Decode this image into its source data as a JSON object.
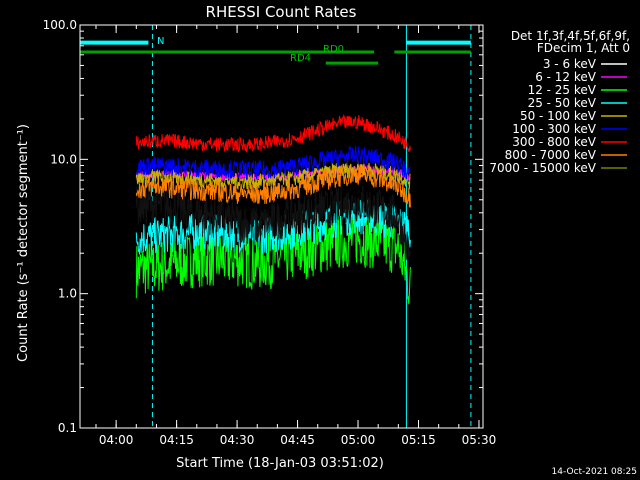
{
  "chart_data": {
    "type": "line",
    "title": "RHESSI Count Rates",
    "xlabel": "Start Time (18-Jan-03 03:51:02)",
    "ylabel": "Count Rate (s⁻¹ detector segment⁻¹)",
    "y_scale": "log",
    "ylim": [
      0.1,
      100.0
    ],
    "xlim": [
      "03:51:02",
      "05:31:00"
    ],
    "x_ticks": [
      "04:00",
      "04:15",
      "04:30",
      "04:45",
      "05:00",
      "05:15",
      "05:30"
    ],
    "y_ticks": [
      "0.1",
      "1.0",
      "10.0",
      "100.0"
    ],
    "grid": false,
    "legend_position": "right",
    "legend_header": [
      "Det 1f,3f,4f,5f,6f,9f,",
      "FDecim 1, Att 0"
    ],
    "series": [
      {
        "name": "3 - 6 keV",
        "color": "#000000",
        "x": [
          "04:05",
          "04:10",
          "04:15",
          "04:20",
          "04:25",
          "04:30",
          "04:35",
          "04:40",
          "04:45",
          "04:50",
          "04:55",
          "05:00",
          "05:05",
          "05:10",
          "05:13"
        ],
        "y": [
          4.5,
          4.6,
          4.3,
          4.0,
          3.8,
          3.4,
          3.2,
          3.5,
          3.9,
          4.2,
          4.4,
          4.8,
          4.3,
          3.8,
          1.8
        ]
      },
      {
        "name": "6 - 12 keV",
        "color": "#ff00ff",
        "x": [
          "04:05",
          "04:10",
          "04:15",
          "04:20",
          "04:25",
          "04:30",
          "04:35",
          "04:40",
          "04:45",
          "04:50",
          "04:55",
          "05:00",
          "05:05",
          "05:10",
          "05:13"
        ],
        "y": [
          7.5,
          7.8,
          7.8,
          7.6,
          7.5,
          7.4,
          7.3,
          7.4,
          7.6,
          8.0,
          8.3,
          8.6,
          8.4,
          8.0,
          7.4
        ]
      },
      {
        "name": "12 - 25 keV",
        "color": "#00ff00",
        "x": [
          "04:05",
          "04:10",
          "04:15",
          "04:20",
          "04:25",
          "04:30",
          "04:35",
          "04:40",
          "04:45",
          "04:50",
          "04:55",
          "05:00",
          "05:05",
          "05:10",
          "05:13"
        ],
        "y": [
          1.5,
          1.6,
          1.7,
          1.8,
          1.8,
          1.8,
          1.7,
          1.8,
          2.0,
          2.2,
          2.4,
          2.6,
          2.4,
          2.2,
          1.1
        ]
      },
      {
        "name": "25 - 50 keV",
        "color": "#00ffff",
        "x": [
          "04:05",
          "04:10",
          "04:15",
          "04:20",
          "04:25",
          "04:30",
          "04:35",
          "04:40",
          "04:45",
          "04:50",
          "04:55",
          "05:00",
          "05:05",
          "05:10",
          "05:13"
        ],
        "y": [
          2.6,
          2.7,
          2.8,
          2.9,
          2.8,
          2.8,
          2.7,
          2.8,
          3.0,
          3.3,
          3.6,
          3.8,
          3.6,
          3.4,
          3.0
        ]
      },
      {
        "name": "50 - 100 keV",
        "color": "#c8b400",
        "x": [
          "04:05",
          "04:10",
          "04:15",
          "04:20",
          "04:25",
          "04:30",
          "04:35",
          "04:40",
          "04:45",
          "04:50",
          "04:55",
          "05:00",
          "05:05",
          "05:10",
          "05:13"
        ],
        "y": [
          7.2,
          7.4,
          7.3,
          7.1,
          7.0,
          6.9,
          6.8,
          7.0,
          7.3,
          7.8,
          8.2,
          8.6,
          8.2,
          7.6,
          6.8
        ]
      },
      {
        "name": "100 - 300 keV",
        "color": "#0000ff",
        "x": [
          "04:05",
          "04:10",
          "04:15",
          "04:20",
          "04:25",
          "04:30",
          "04:35",
          "04:40",
          "04:45",
          "04:50",
          "04:55",
          "05:00",
          "05:05",
          "05:10",
          "05:13"
        ],
        "y": [
          8.8,
          9.0,
          8.8,
          8.6,
          8.5,
          8.4,
          8.3,
          8.5,
          8.9,
          9.6,
          10.3,
          10.8,
          10.2,
          9.2,
          7.8
        ]
      },
      {
        "name": "300 - 800 keV",
        "color": "#ff0000",
        "x": [
          "04:05",
          "04:10",
          "04:15",
          "04:20",
          "04:25",
          "04:30",
          "04:35",
          "04:40",
          "04:45",
          "04:50",
          "04:55",
          "05:00",
          "05:05",
          "05:10",
          "05:13"
        ],
        "y": [
          13.2,
          13.8,
          13.6,
          13.2,
          12.9,
          12.8,
          12.9,
          13.5,
          14.5,
          16.5,
          18.5,
          19.0,
          17.0,
          14.5,
          12.5
        ]
      },
      {
        "name": "800 - 7000 keV",
        "color": "#ff8000",
        "x": [
          "04:05",
          "04:10",
          "04:15",
          "04:20",
          "04:25",
          "04:30",
          "04:35",
          "04:40",
          "04:45",
          "04:50",
          "04:55",
          "05:00",
          "05:05",
          "05:10",
          "05:13"
        ],
        "y": [
          6.0,
          6.3,
          6.1,
          5.9,
          5.8,
          5.6,
          5.5,
          5.7,
          6.1,
          6.8,
          7.4,
          7.8,
          7.2,
          6.2,
          5.2
        ]
      },
      {
        "name": "7000 - 15000 keV",
        "color": "#808000",
        "x": [],
        "y": []
      }
    ],
    "annotations": {
      "N_label": "N",
      "RD0_label": "RD0",
      "RD4_label": "RD4",
      "N_segments": [
        [
          "03:51:02",
          "04:08"
        ],
        [
          "05:12",
          "05:28"
        ]
      ],
      "RD0_segments": [
        [
          "03:51:02",
          "05:04"
        ],
        [
          "05:09",
          "05:28"
        ]
      ],
      "RD4_segment": [
        "04:52",
        "05:05"
      ],
      "cyan_solid_lines": [
        "03:51:02",
        "05:12"
      ],
      "cyan_dashed_lines": [
        "04:09",
        "05:28"
      ]
    },
    "footer": "14-Oct-2021 08:25"
  }
}
